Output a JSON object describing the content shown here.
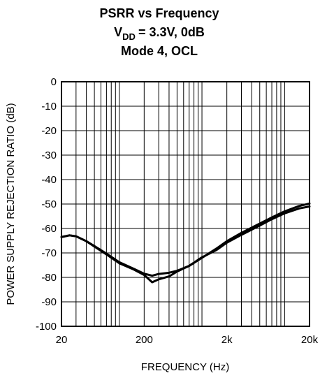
{
  "chart_data": {
    "type": "line",
    "title_lines": [
      "PSRR vs Frequency",
      "= 3.3V, 0dB",
      "Mode 4, OCL"
    ],
    "title_vdd_main": "V",
    "title_vdd_sub": "DD",
    "xlabel": "FREQUENCY (Hz)",
    "ylabel": "POWER SUPPLY REJECTION RATIO (dB)",
    "x_scale": "log",
    "xlim": [
      20,
      20000
    ],
    "ylim": [
      -100,
      0
    ],
    "grid": true,
    "x_ticks": [
      {
        "value": 20,
        "label": "20"
      },
      {
        "value": 200,
        "label": "200"
      },
      {
        "value": 2000,
        "label": "2k"
      },
      {
        "value": 20000,
        "label": "20k"
      }
    ],
    "y_ticks": [
      {
        "value": 0,
        "label": "0"
      },
      {
        "value": -10,
        "label": "-10"
      },
      {
        "value": -20,
        "label": "-20"
      },
      {
        "value": -30,
        "label": "-30"
      },
      {
        "value": -40,
        "label": "-40"
      },
      {
        "value": -50,
        "label": "-50"
      },
      {
        "value": -60,
        "label": "-60"
      },
      {
        "value": -70,
        "label": "-70"
      },
      {
        "value": -80,
        "label": "-80"
      },
      {
        "value": -90,
        "label": "-90"
      },
      {
        "value": -100,
        "label": "-100"
      }
    ],
    "series": [
      {
        "x": [
          20,
          25,
          30,
          40,
          50,
          70,
          100,
          150,
          200,
          250,
          300,
          400,
          500,
          700,
          1000,
          1500,
          2000,
          3000,
          5000,
          7000,
          10000,
          15000,
          20000
        ],
        "y": [
          -63.5,
          -62.8,
          -63.2,
          -65.2,
          -67.2,
          -70.3,
          -73.8,
          -76.5,
          -78.5,
          -79.3,
          -78.6,
          -78.1,
          -77.3,
          -75.3,
          -72.0,
          -68.2,
          -65.2,
          -61.8,
          -58.0,
          -55.5,
          -53.0,
          -50.8,
          -49.8
        ],
        "color": "#000000"
      },
      {
        "x": [
          20,
          25,
          30,
          40,
          50,
          70,
          100,
          150,
          200,
          250,
          300,
          400,
          500,
          700,
          1000,
          1500,
          2000,
          3000,
          5000,
          7000,
          10000,
          15000,
          20000
        ],
        "y": [
          -63.5,
          -62.8,
          -63.2,
          -65.2,
          -67.4,
          -70.6,
          -74.2,
          -76.8,
          -79.0,
          -82.0,
          -80.8,
          -79.6,
          -77.6,
          -75.3,
          -71.8,
          -68.8,
          -65.8,
          -62.6,
          -58.8,
          -56.2,
          -53.8,
          -51.8,
          -51.0
        ],
        "color": "#000000"
      }
    ]
  }
}
